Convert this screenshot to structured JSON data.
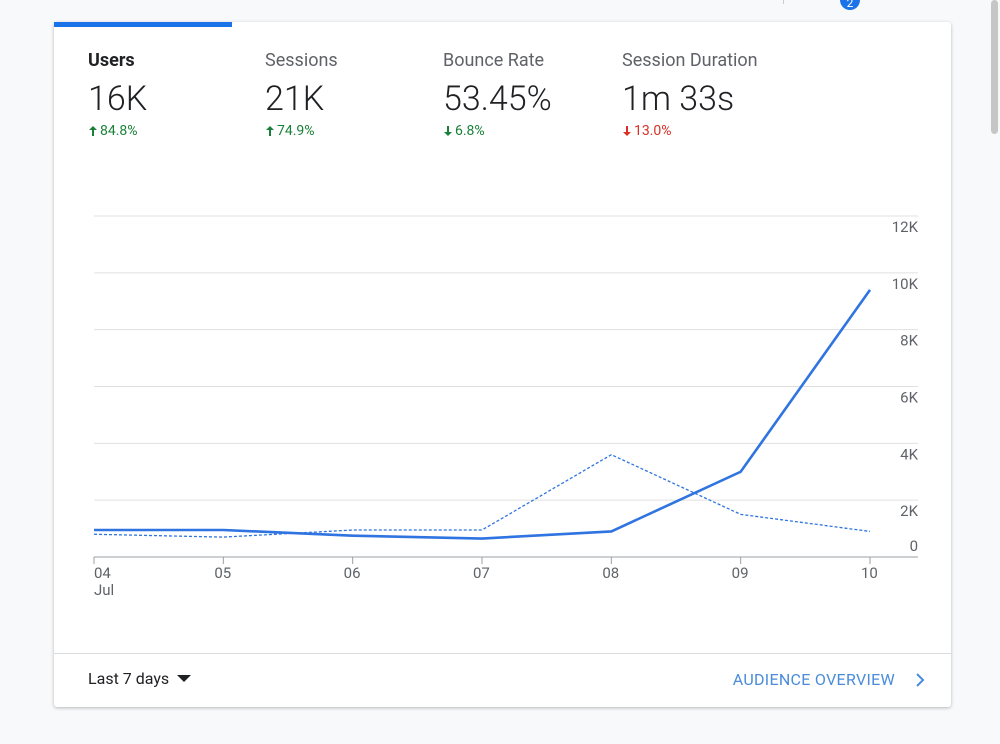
{
  "notification_badge": "2",
  "metrics": [
    {
      "name": "Users",
      "value": "16K",
      "change": "84.8%",
      "color": "#188038"
    },
    {
      "name": "Sessions",
      "value": "21K",
      "change": "74.9%",
      "color": "#188038"
    },
    {
      "name": "Bounce Rate",
      "value": "53.45%",
      "change": "6.8%",
      "color": "#188038"
    },
    {
      "name": "Session Duration",
      "value": "1m 33s",
      "change": "13.0%",
      "color": "#d93025"
    }
  ],
  "footer": {
    "range": "Last 7 days",
    "link": "AUDIENCE OVERVIEW"
  },
  "chart_data": {
    "type": "line",
    "categories": [
      "04",
      "05",
      "06",
      "07",
      "08",
      "09",
      "10"
    ],
    "x_month_label": "Jul",
    "series": [
      {
        "color": "#2f74e0",
        "dashed": false,
        "values": [
          950,
          950,
          750,
          650,
          900,
          3000,
          9400
        ]
      },
      {
        "color": "#2f74e0",
        "dashed": true,
        "values": [
          800,
          700,
          950,
          950,
          3600,
          1500,
          900
        ]
      }
    ],
    "ylim": [
      0,
      12000
    ],
    "yticks": [
      0,
      {
        "value": 2000,
        "label": "2K"
      },
      {
        "value": 4000,
        "label": "4K"
      },
      {
        "value": 6000,
        "label": "6K"
      },
      {
        "value": 8000,
        "label": "8K"
      },
      {
        "value": 10000,
        "label": "10K"
      },
      {
        "value": 12000,
        "label": "12K"
      }
    ],
    "grid": true
  }
}
